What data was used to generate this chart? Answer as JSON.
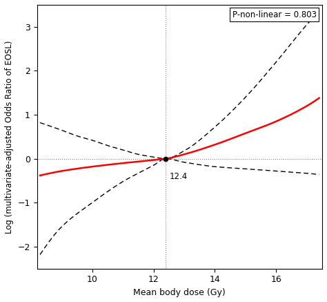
{
  "title": "",
  "xlabel": "Mean body dose (Gy)",
  "ylabel": "Log (multivariate-adjusted Odds Ratio of EOSL)",
  "xlim": [
    8.2,
    17.5
  ],
  "ylim": [
    -2.5,
    3.5
  ],
  "yticks": [
    -2,
    -1,
    0,
    1,
    2,
    3
  ],
  "xticks": [
    10,
    12,
    14,
    16
  ],
  "reference_x": 12.4,
  "annotation_text": "12.4",
  "pvalue_text": "P-non-linear = 0.803",
  "x_start": 8.3,
  "x_end": 17.4,
  "red_points_x": [
    8.3,
    9.0,
    10.0,
    11.0,
    12.0,
    12.4,
    13.0,
    14.0,
    15.0,
    16.0,
    17.0,
    17.4
  ],
  "red_points_y": [
    -0.38,
    -0.28,
    -0.18,
    -0.1,
    -0.03,
    0.0,
    0.1,
    0.32,
    0.58,
    0.85,
    1.2,
    1.38
  ],
  "upper_points_x": [
    8.3,
    9.0,
    9.5,
    10.0,
    10.5,
    11.0,
    11.5,
    12.0,
    12.4,
    13.0,
    14.0,
    15.0,
    16.0,
    17.0,
    17.4
  ],
  "upper_points_y": [
    0.82,
    0.65,
    0.52,
    0.42,
    0.3,
    0.2,
    0.1,
    0.04,
    0.0,
    0.18,
    0.72,
    1.4,
    2.2,
    3.05,
    3.35
  ],
  "lower_points_x": [
    8.3,
    9.0,
    10.0,
    11.0,
    12.0,
    12.4,
    13.0,
    14.0,
    15.0,
    16.0,
    17.0,
    17.4
  ],
  "lower_points_y": [
    -2.18,
    -1.55,
    -1.0,
    -0.52,
    -0.15,
    0.0,
    -0.08,
    -0.18,
    -0.23,
    -0.28,
    -0.33,
    -0.36
  ]
}
